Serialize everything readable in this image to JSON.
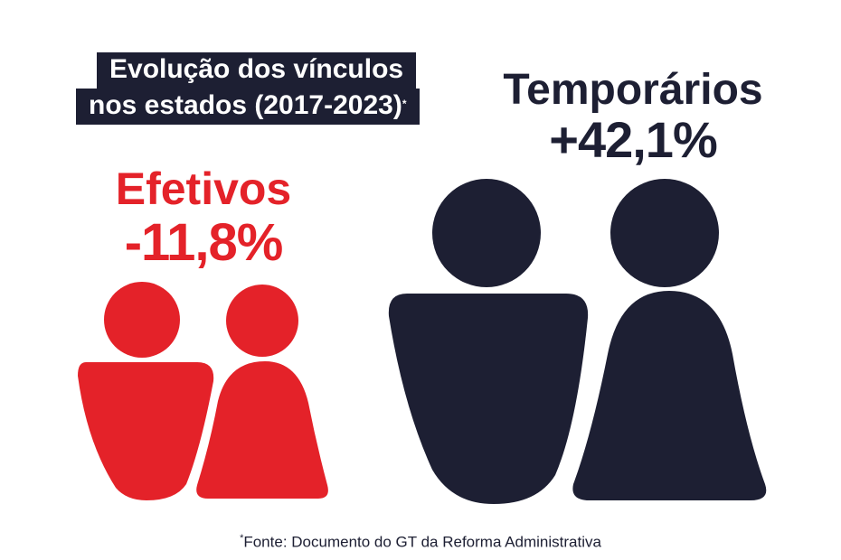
{
  "title": {
    "line1": "Evolução dos vínculos",
    "line2": "nos estados (2017-2023)",
    "footnote_mark": "*"
  },
  "efetivos": {
    "label": "Efetivos",
    "change": "-11,8%",
    "color": "#e42229"
  },
  "temporarios": {
    "label": "Temporários",
    "change": "+42,1%",
    "color": "#1d1f33"
  },
  "source": {
    "mark": "*",
    "text": "Fonte: Documento do GT da Reforma Administrativa"
  }
}
